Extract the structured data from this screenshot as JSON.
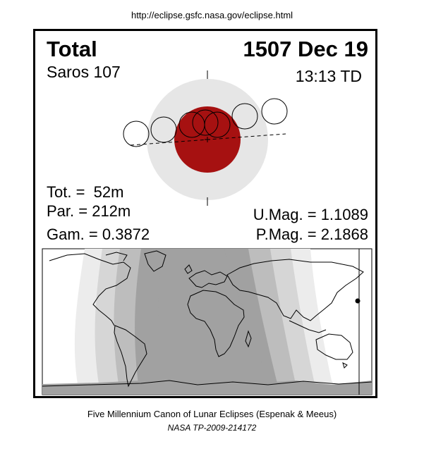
{
  "header": {
    "url": "http://eclipse.gsfc.nasa.gov/eclipse.html"
  },
  "eclipse": {
    "type": "Total",
    "date": "1507 Dec 19",
    "saros": "Saros 107",
    "time": "13:13 TD",
    "tot": "Tot. =  52m",
    "par": "Par. = 212m",
    "gam": "Gam. = 0.3872",
    "umag": "U.Mag. = 1.1089",
    "pmag": "P.Mag. = 2.1868"
  },
  "colors": {
    "umbra": "#a61111",
    "penumbra": "#e6e6e6",
    "map_zones": [
      "#ffffff",
      "#ececec",
      "#d6d6d6",
      "#bdbdbd",
      "#a1a1a1"
    ]
  },
  "footer": {
    "credit": "Five Millennium Canon of Lunar Eclipses (Espenak & Meeus)",
    "publication": "NASA TP-2009-214172"
  }
}
